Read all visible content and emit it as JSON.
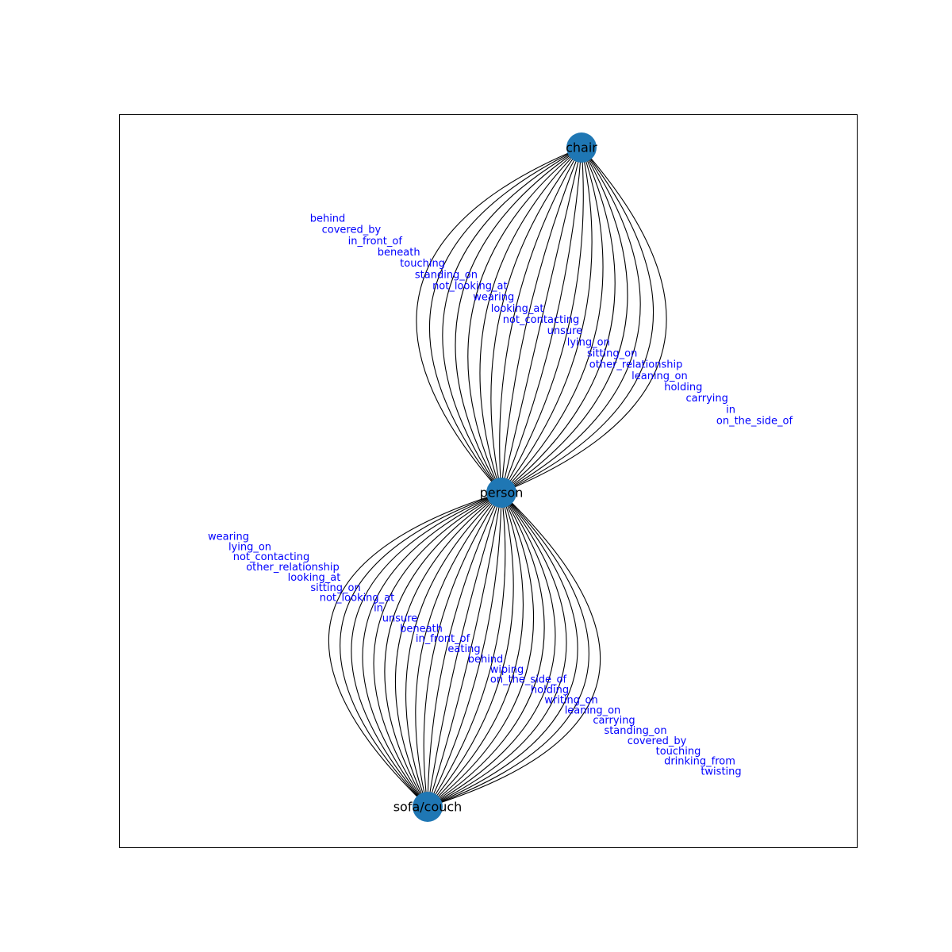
{
  "colors": {
    "node": "#1f77b4",
    "edge": "#000000",
    "edge_label": "#0000ff",
    "frame": "#000000"
  },
  "nodes": [
    {
      "id": "chair",
      "label": "chair"
    },
    {
      "id": "person",
      "label": "person"
    },
    {
      "id": "sofa",
      "label": "sofa/couch"
    }
  ],
  "edge_groups": [
    {
      "from": "person",
      "to": "chair",
      "labels": [
        "behind",
        "covered_by",
        "in_front_of",
        "beneath",
        "touching",
        "standing_on",
        "not_looking_at",
        "wearing",
        "looking_at",
        "not_contacting",
        "unsure",
        "lying_on",
        "sitting_on",
        "other_relationship",
        "leaning_on",
        "holding",
        "carrying",
        "in",
        "on_the_side_of"
      ]
    },
    {
      "from": "person",
      "to": "sofa",
      "labels": [
        "wearing",
        "lying_on",
        "not_contacting",
        "other_relationship",
        "looking_at",
        "sitting_on",
        "not_looking_at",
        "in",
        "unsure",
        "beneath",
        "in_front_of",
        "eating",
        "behind",
        "wiping",
        "on_the_side_of",
        "holding",
        "writing_on",
        "leaning_on",
        "carrying",
        "standing_on",
        "covered_by",
        "touching",
        "drinking_from",
        "twisting"
      ]
    }
  ]
}
